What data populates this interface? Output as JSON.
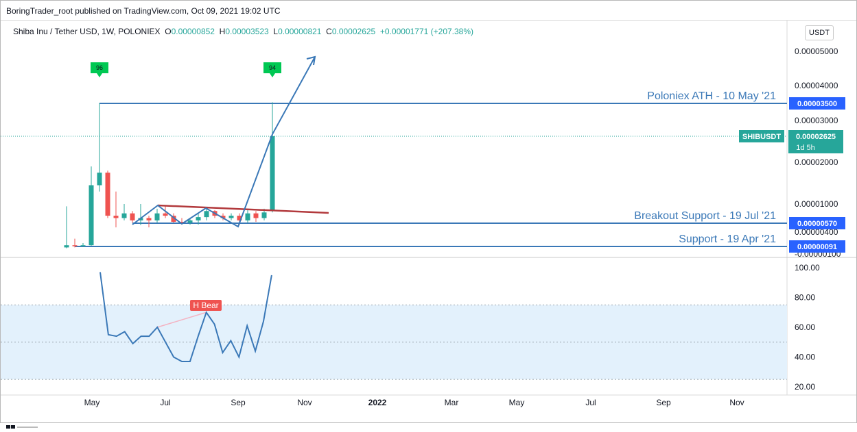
{
  "publisher_line": "BoringTrader_root published on TradingView.com, Oct 09, 2021 19:02 UTC",
  "legend": {
    "symbol": "Shiba Inu / Tether USD, 1W, POLONIEX",
    "o_label": "O",
    "o_value": "0.00000852",
    "h_label": "H",
    "h_value": "0.00003523",
    "l_label": "L",
    "l_value": "0.00000821",
    "c_label": "C",
    "c_value": "0.00002625",
    "change": "+0.00001771 (+207.38%)"
  },
  "currency_button": "USDT",
  "colors": {
    "up": "#26a69a",
    "down": "#ef5350",
    "annotation_blue": "#3a78b7",
    "rsi_line": "#3a78b7",
    "resistance": "#b2393c",
    "signal_tag": "#00c853",
    "price_tag": "#26a69a",
    "rsi_band": "#e3f1fc"
  },
  "chart_data": [
    {
      "type": "candlestick",
      "title": "Shiba Inu / Tether USD, 1W, POLONIEX",
      "y_axis_ticks": [
        "0.00005000",
        "0.00004000",
        "0.00003000",
        "0.00002000",
        "0.00001000",
        "0.00000400",
        "-0.00000100"
      ],
      "x_axis_ticks": [
        "May",
        "Jul",
        "Sep",
        "Nov",
        "2022",
        "Mar",
        "May",
        "Jul",
        "Sep",
        "Nov"
      ],
      "last_price_label": "SHIBUSDT",
      "last_price": "0.00002625",
      "countdown": "1d 5h",
      "candles": [
        {
          "o": 5e-07,
          "h": 9.5e-06,
          "l": 3e-07,
          "c": 1e-06
        },
        {
          "o": 1e-06,
          "h": 2.5e-06,
          "l": 5e-07,
          "c": 8e-07
        },
        {
          "o": 8e-07,
          "h": 1.5e-06,
          "l": 7e-07,
          "c": 1e-06
        },
        {
          "o": 1e-06,
          "h": 1.9e-05,
          "l": 9e-07,
          "c": 1.45e-05
        },
        {
          "o": 1.45e-05,
          "h": 3.5e-05,
          "l": 1.3e-05,
          "c": 1.75e-05
        },
        {
          "o": 1.75e-05,
          "h": 1.8e-05,
          "l": 7e-06,
          "c": 7.5e-06
        },
        {
          "o": 7.5e-06,
          "h": 1.3e-05,
          "l": 5e-06,
          "c": 7e-06
        },
        {
          "o": 7e-06,
          "h": 1e-05,
          "l": 6.5e-06,
          "c": 8e-06
        },
        {
          "o": 8e-06,
          "h": 8.5e-06,
          "l": 6e-06,
          "c": 6.5e-06
        },
        {
          "o": 6.5e-06,
          "h": 1e-05,
          "l": 5.5e-06,
          "c": 7e-06
        },
        {
          "o": 7e-06,
          "h": 7.5e-06,
          "l": 5e-06,
          "c": 6.5e-06
        },
        {
          "o": 6.5e-06,
          "h": 9e-06,
          "l": 6e-06,
          "c": 8e-06
        },
        {
          "o": 8e-06,
          "h": 9.5e-06,
          "l": 7e-06,
          "c": 7.5e-06
        },
        {
          "o": 7.5e-06,
          "h": 8e-06,
          "l": 6e-06,
          "c": 6.2e-06
        },
        {
          "o": 6.2e-06,
          "h": 7e-06,
          "l": 5.7e-06,
          "c": 6e-06
        },
        {
          "o": 6e-06,
          "h": 7e-06,
          "l": 5.6e-06,
          "c": 6.5e-06
        },
        {
          "o": 6.5e-06,
          "h": 8e-06,
          "l": 5.6e-06,
          "c": 7.2e-06
        },
        {
          "o": 7.2e-06,
          "h": 9e-06,
          "l": 6.5e-06,
          "c": 8.5e-06
        },
        {
          "o": 8.5e-06,
          "h": 8.7e-06,
          "l": 7e-06,
          "c": 7.5e-06
        },
        {
          "o": 7.5e-06,
          "h": 8e-06,
          "l": 6.5e-06,
          "c": 7e-06
        },
        {
          "o": 7e-06,
          "h": 8e-06,
          "l": 6.5e-06,
          "c": 7.5e-06
        },
        {
          "o": 7.5e-06,
          "h": 8e-06,
          "l": 5.5e-06,
          "c": 6.5e-06
        },
        {
          "o": 6.5e-06,
          "h": 9e-06,
          "l": 6e-06,
          "c": 8e-06
        },
        {
          "o": 8e-06,
          "h": 8.5e-06,
          "l": 6.2e-06,
          "c": 7e-06
        },
        {
          "o": 7e-06,
          "h": 9e-06,
          "l": 6.5e-06,
          "c": 8.2e-06
        },
        {
          "o": 8.52e-06,
          "h": 3.523e-05,
          "l": 8.21e-06,
          "c": 2.625e-05
        }
      ],
      "signals": [
        {
          "label": "96",
          "candle_index": 4
        },
        {
          "label": "94",
          "candle_index": 25
        }
      ],
      "levels": [
        {
          "label": "Poloniex ATH - 10 May '21",
          "price": "0.00003500",
          "value": 3.5e-05
        },
        {
          "label": "Breakout Support - 19 Jul '21",
          "price": "0.00000570",
          "value": 5.7e-06
        },
        {
          "label": "Support - 19 Apr '21",
          "price": "0.00000091",
          "value": 9.1e-07
        }
      ]
    },
    {
      "type": "line",
      "y_axis_ticks": [
        "100.00",
        "80.00",
        "60.00",
        "40.00",
        "20.00"
      ],
      "ylim": [
        18,
        105
      ],
      "band": [
        25,
        75
      ],
      "midline": 50,
      "annotation": "H Bear",
      "values": [
        97,
        55,
        54,
        57,
        49,
        54,
        54,
        60,
        50,
        40,
        37,
        37,
        54,
        70,
        62,
        43,
        51,
        40,
        61,
        44,
        64,
        95
      ]
    }
  ]
}
